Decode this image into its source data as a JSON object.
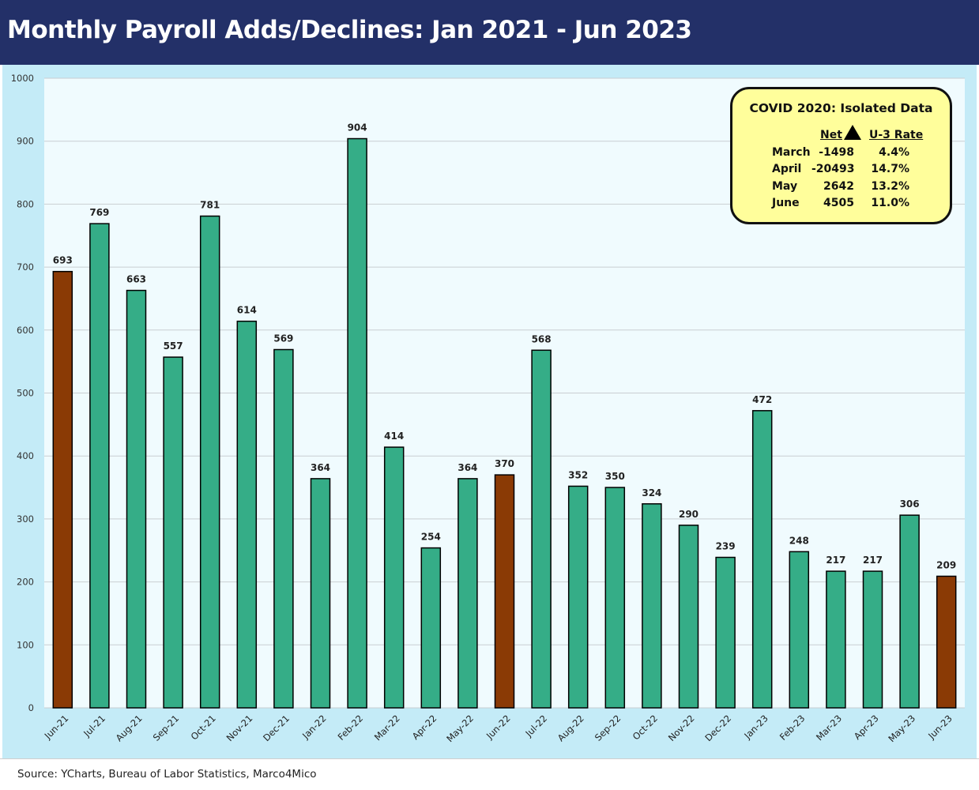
{
  "title": "Monthly Payroll Adds/Declines: Jan 2021 - Jun 2023",
  "source": "Source: YCharts, Bureau of Labor Statistics, Marco4Mico",
  "colors": {
    "header_bg": "#233068",
    "bar_default": "#35ad87",
    "bar_highlight": "#8a3a05",
    "plot_bg": "#f0fbfe",
    "frame_bg": "#c4ebf7",
    "callout_bg": "#fffe9b"
  },
  "chart_data": {
    "type": "bar",
    "title": "Monthly Payroll Adds/Declines: Jan 2021 - Jun 2023",
    "ylim": [
      0,
      1000
    ],
    "yticks": [
      0,
      100,
      200,
      300,
      400,
      500,
      600,
      700,
      800,
      900,
      1000
    ],
    "grid": true,
    "categories": [
      "Jun-21",
      "Jul-21",
      "Aug-21",
      "Sep-21",
      "Oct-21",
      "Nov-21",
      "Dec-21",
      "Jan-22",
      "Feb-22",
      "Mar-22",
      "Apr-22",
      "May-22",
      "Jun-22",
      "Jul-22",
      "Aug-22",
      "Sep-22",
      "Oct-22",
      "Nov-22",
      "Dec-22",
      "Jan-23",
      "Feb-23",
      "Mar-23",
      "Apr-23",
      "May-23",
      "Jun-23"
    ],
    "values": [
      693,
      769,
      663,
      557,
      781,
      614,
      569,
      364,
      904,
      414,
      254,
      364,
      370,
      568,
      352,
      350,
      324,
      290,
      239,
      472,
      248,
      217,
      217,
      306,
      209
    ],
    "highlighted": [
      "Jun-21",
      "Jun-22",
      "Jun-23"
    ]
  },
  "covid_box": {
    "title": "COVID 2020: Isolated Data",
    "col_net": "Net",
    "col_rate": "U-3 Rate",
    "rows": [
      {
        "month": "March",
        "net": "-1498",
        "rate": "4.4%"
      },
      {
        "month": "April",
        "net": "-20493",
        "rate": "14.7%"
      },
      {
        "month": "May",
        "net": "2642",
        "rate": "13.2%"
      },
      {
        "month": "June",
        "net": "4505",
        "rate": "11.0%"
      }
    ]
  }
}
